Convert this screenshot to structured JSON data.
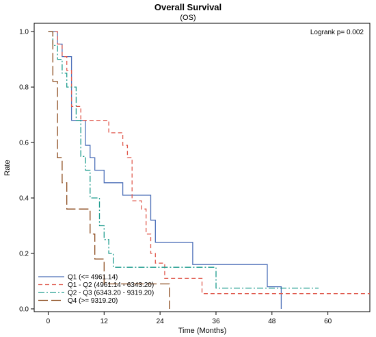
{
  "chart_data": {
    "type": "line",
    "title": "Overall Survival",
    "subtitle": "(OS)",
    "xlabel": "Time (Months)",
    "ylabel": "Rate",
    "xlim": [
      -3,
      69
    ],
    "ylim": [
      -0.01,
      1.03
    ],
    "xticks": [
      0,
      12,
      24,
      36,
      48,
      60
    ],
    "yticks": [
      0.0,
      0.2,
      0.4,
      0.6,
      0.8,
      1.0
    ],
    "xtick_labels": [
      "0",
      "12",
      "24",
      "36",
      "48",
      "60"
    ],
    "ytick_labels": [
      "0.0",
      "0.2",
      "0.4",
      "0.6",
      "0.8",
      "1.0"
    ],
    "grid": false,
    "legend_position": "bottom-left",
    "annotation": "Logrank p= 0.002",
    "series": [
      {
        "name": "Q1 (<= 4961.14)",
        "color": "#4c6fb8",
        "dash": "solid",
        "points": [
          [
            0,
            1.0
          ],
          [
            2,
            1.0
          ],
          [
            2,
            0.955
          ],
          [
            3,
            0.955
          ],
          [
            3,
            0.91
          ],
          [
            5,
            0.91
          ],
          [
            5,
            0.68
          ],
          [
            8,
            0.68
          ],
          [
            8,
            0.59
          ],
          [
            9,
            0.59
          ],
          [
            9,
            0.545
          ],
          [
            10,
            0.545
          ],
          [
            10,
            0.5
          ],
          [
            12,
            0.5
          ],
          [
            12,
            0.455
          ],
          [
            16,
            0.455
          ],
          [
            16,
            0.41
          ],
          [
            22,
            0.41
          ],
          [
            22,
            0.32
          ],
          [
            23,
            0.32
          ],
          [
            23,
            0.24
          ],
          [
            25,
            0.24
          ],
          [
            25,
            0.24
          ],
          [
            31,
            0.24
          ],
          [
            31,
            0.16
          ],
          [
            47,
            0.16
          ],
          [
            47,
            0.08
          ],
          [
            50,
            0.08
          ],
          [
            50,
            0.0
          ]
        ]
      },
      {
        "name": "Q1 - Q2 (4961.14 - 6343.20)",
        "color": "#e05a4e",
        "dash": "dashed",
        "points": [
          [
            0,
            1.0
          ],
          [
            2,
            1.0
          ],
          [
            2,
            0.955
          ],
          [
            3,
            0.955
          ],
          [
            3,
            0.91
          ],
          [
            4,
            0.91
          ],
          [
            4,
            0.86
          ],
          [
            5,
            0.86
          ],
          [
            5,
            0.73
          ],
          [
            7,
            0.73
          ],
          [
            7,
            0.68
          ],
          [
            13,
            0.68
          ],
          [
            13,
            0.635
          ],
          [
            16,
            0.635
          ],
          [
            16,
            0.59
          ],
          [
            17,
            0.59
          ],
          [
            17,
            0.545
          ],
          [
            18,
            0.545
          ],
          [
            18,
            0.39
          ],
          [
            20,
            0.39
          ],
          [
            20,
            0.36
          ],
          [
            21,
            0.36
          ],
          [
            21,
            0.27
          ],
          [
            22,
            0.27
          ],
          [
            22,
            0.2
          ],
          [
            23,
            0.2
          ],
          [
            23,
            0.165
          ],
          [
            25,
            0.165
          ],
          [
            25,
            0.11
          ],
          [
            33,
            0.11
          ],
          [
            33,
            0.055
          ],
          [
            69,
            0.055
          ]
        ]
      },
      {
        "name": "Q2 - Q3 (6343.20 - 9319.20)",
        "color": "#1a9a8c",
        "dash": "dashdot",
        "points": [
          [
            0,
            1.0
          ],
          [
            1,
            1.0
          ],
          [
            1,
            0.95
          ],
          [
            2,
            0.95
          ],
          [
            2,
            0.9
          ],
          [
            3,
            0.9
          ],
          [
            3,
            0.85
          ],
          [
            4,
            0.85
          ],
          [
            4,
            0.8
          ],
          [
            6,
            0.8
          ],
          [
            6,
            0.68
          ],
          [
            7,
            0.68
          ],
          [
            7,
            0.55
          ],
          [
            8,
            0.55
          ],
          [
            8,
            0.5
          ],
          [
            9,
            0.5
          ],
          [
            9,
            0.4
          ],
          [
            11,
            0.4
          ],
          [
            11,
            0.3
          ],
          [
            12,
            0.3
          ],
          [
            12,
            0.25
          ],
          [
            13,
            0.25
          ],
          [
            13,
            0.2
          ],
          [
            14,
            0.2
          ],
          [
            14,
            0.15
          ],
          [
            36,
            0.15
          ],
          [
            36,
            0.075
          ],
          [
            58,
            0.075
          ]
        ]
      },
      {
        "name": "Q4 (>= 9319.20)",
        "color": "#8b4a1c",
        "dash": "longdash",
        "points": [
          [
            0,
            1.0
          ],
          [
            1,
            1.0
          ],
          [
            1,
            0.82
          ],
          [
            2,
            0.82
          ],
          [
            2,
            0.545
          ],
          [
            3,
            0.545
          ],
          [
            3,
            0.455
          ],
          [
            4,
            0.455
          ],
          [
            4,
            0.36
          ],
          [
            6,
            0.36
          ],
          [
            6,
            0.36
          ],
          [
            9,
            0.36
          ],
          [
            9,
            0.27
          ],
          [
            10,
            0.27
          ],
          [
            10,
            0.18
          ],
          [
            12,
            0.18
          ],
          [
            12,
            0.09
          ],
          [
            26,
            0.09
          ],
          [
            26,
            0.0
          ]
        ]
      }
    ]
  }
}
